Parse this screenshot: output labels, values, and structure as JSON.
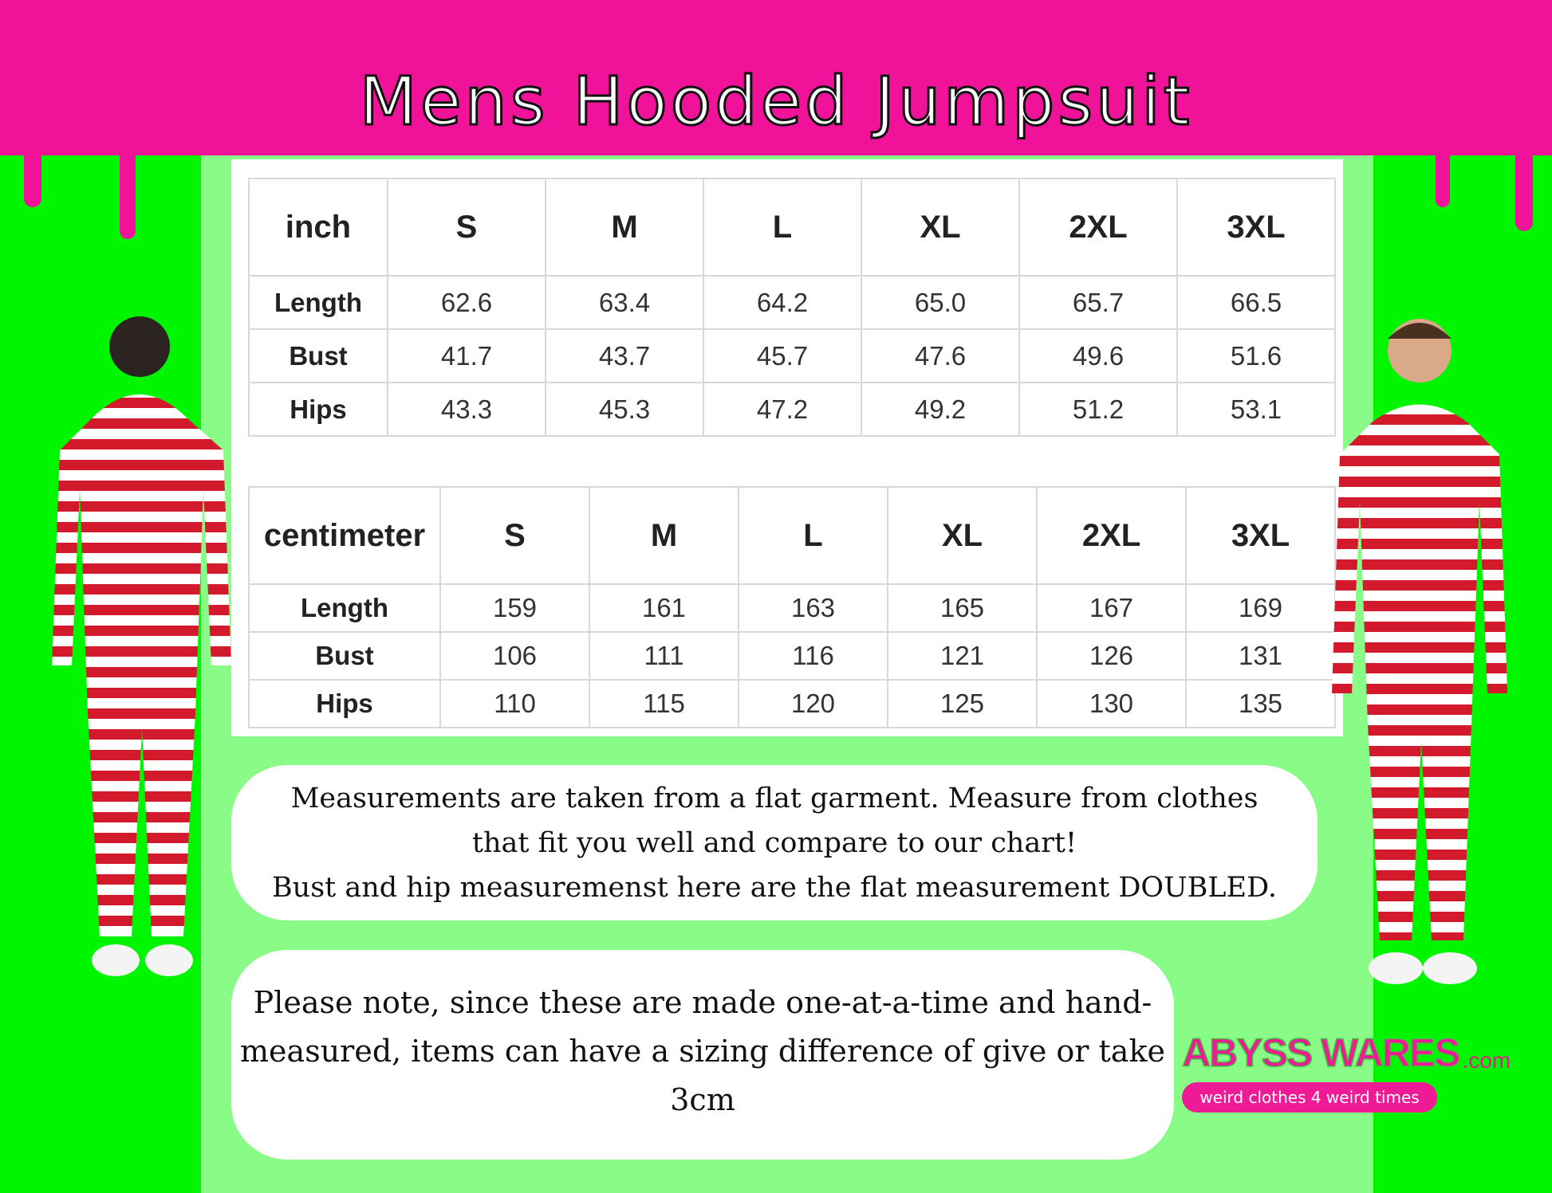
{
  "title": "Mens Hooded Jumpsuit",
  "colors": {
    "header": "#f0139a",
    "side_green": "#00f500",
    "center_green": "#88fc86",
    "stripe_red": "#d21a2c"
  },
  "inch_table": {
    "headers": [
      "inch",
      "S",
      "M",
      "L",
      "XL",
      "2XL",
      "3XL"
    ],
    "rows": [
      [
        "Length",
        "62.6",
        "63.4",
        "64.2",
        "65.0",
        "65.7",
        "66.5"
      ],
      [
        "Bust",
        "41.7",
        "43.7",
        "45.7",
        "47.6",
        "49.6",
        "51.6"
      ],
      [
        "Hips",
        "43.3",
        "45.3",
        "47.2",
        "49.2",
        "51.2",
        "53.1"
      ]
    ]
  },
  "cm_table": {
    "headers": [
      "centimeter",
      "S",
      "M",
      "L",
      "XL",
      "2XL",
      "3XL"
    ],
    "rows": [
      [
        "Length",
        "159",
        "161",
        "163",
        "165",
        "167",
        "169"
      ],
      [
        "Bust",
        "106",
        "111",
        "116",
        "121",
        "126",
        "131"
      ],
      [
        "Hips",
        "110",
        "115",
        "120",
        "125",
        "130",
        "135"
      ]
    ]
  },
  "note1": {
    "line1": "Measurements are taken from a flat garment. Measure from clothes",
    "line2": "that fit you well and compare to our chart!",
    "line3": "Bust and hip measuremenst here are the flat measurement DOUBLED."
  },
  "note2": {
    "text": "Please note, since these are made one-at-a-time and hand-measured, items can have a sizing difference of give or take 3cm"
  },
  "logo": {
    "name": "ABYSS WARES",
    "domain": ".com",
    "tagline": "weird clothes 4 weird times"
  }
}
